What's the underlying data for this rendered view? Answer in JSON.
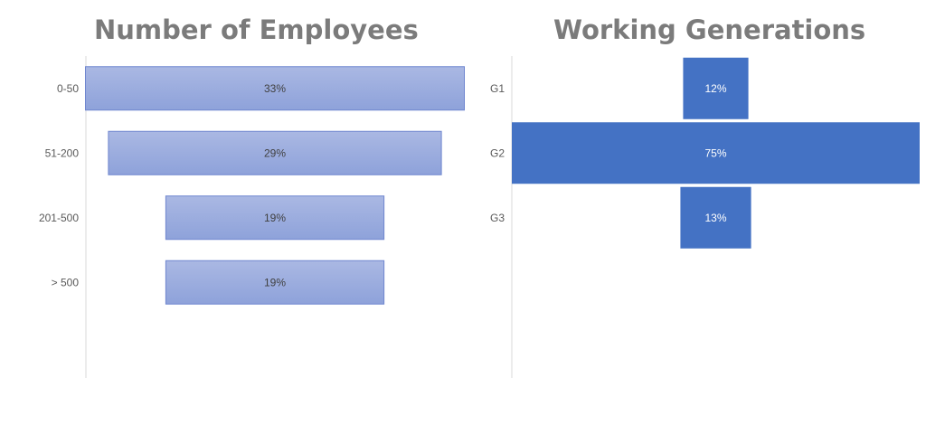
{
  "chart_data": [
    {
      "type": "bar",
      "subtype": "funnel",
      "title": "Number of Employees",
      "categories": [
        "0-50",
        "51-200",
        "201-500",
        "> 500"
      ],
      "values": [
        33,
        29,
        19,
        19
      ],
      "data_labels": [
        "33%",
        "29%",
        "19%",
        "19%"
      ],
      "value_unit": "%",
      "bar_color": "#97a9dc",
      "bar_border_color": "#6f86cf",
      "label_color": "#404040",
      "grid": false,
      "legend": "none"
    },
    {
      "type": "bar",
      "subtype": "funnel",
      "title": "Working Generations",
      "categories": [
        "G1",
        "G2",
        "G3"
      ],
      "values": [
        12,
        75,
        13
      ],
      "data_labels": [
        "12%",
        "75%",
        "13%"
      ],
      "value_unit": "%",
      "bar_color": "#4472c4",
      "label_color": "#ffffff",
      "grid": false,
      "legend": "none"
    }
  ]
}
